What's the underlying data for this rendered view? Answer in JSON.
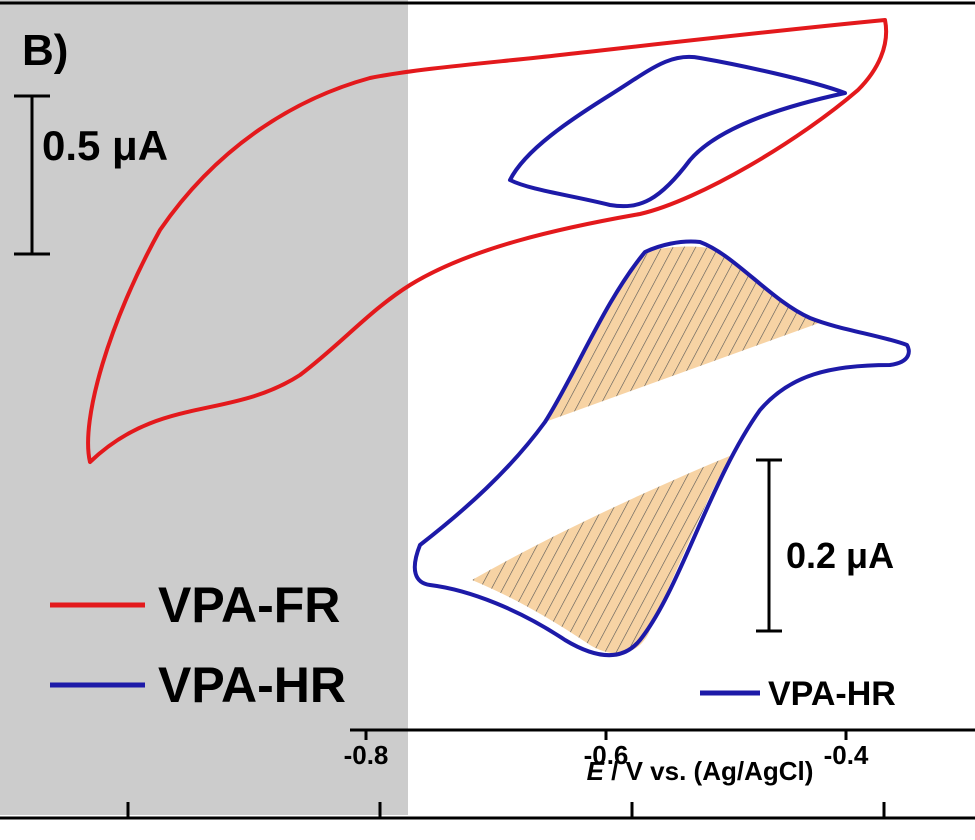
{
  "panel_label": "B)",
  "colors": {
    "shade": "#cccccc",
    "fr": "#e3191c",
    "hr": "#1d1aa8",
    "hatch_fill": "#f7d3a4",
    "axis": "#000000"
  },
  "scale_bars": {
    "large": "0.5 μA",
    "small": "0.2 μA"
  },
  "legend": {
    "entries": [
      {
        "label": "VPA-FR",
        "color": "#e3191c"
      },
      {
        "label": "VPA-HR",
        "color": "#1d1aa8"
      }
    ],
    "inset_entry": {
      "label": "VPA-HR",
      "color": "#1d1aa8"
    }
  },
  "chart_data": {
    "type": "line",
    "title": "",
    "xlabel_italic": "E",
    "xlabel_rest": " / V vs. (Ag/AgCl)",
    "xlim": [
      -0.9,
      -0.34
    ],
    "ylim": [
      0,
      1
    ],
    "x_ticks": [
      -0.8,
      -0.6,
      -0.4
    ],
    "x_tick_labels": [
      "-0.8",
      "-0.6",
      "-0.4"
    ],
    "shaded_region": [
      -0.9,
      -0.76
    ],
    "grid": false,
    "legend_placement": "bottom-left",
    "series": [
      {
        "name": "VPA-FR",
        "color": "#e3191c",
        "closed": true,
        "x": [
          -0.375,
          -0.4,
          -0.45,
          -0.5,
          -0.55,
          -0.6,
          -0.65,
          -0.7,
          -0.75,
          -0.8,
          -0.85,
          -0.875,
          -0.88,
          -0.85,
          -0.8,
          -0.75,
          -0.7,
          -0.65,
          -0.6,
          -0.55,
          -0.5,
          -0.45,
          -0.4,
          -0.375
        ],
        "y": [
          0.985,
          0.835,
          0.76,
          0.74,
          0.735,
          0.715,
          0.695,
          0.67,
          0.635,
          0.57,
          0.49,
          0.45,
          0.5,
          0.79,
          0.87,
          0.915,
          0.93,
          0.94,
          0.95,
          0.96,
          0.965,
          0.975,
          0.982,
          0.985
        ]
      },
      {
        "name": "VPA-HR (upper)",
        "color": "#1d1aa8",
        "closed": true,
        "x": [
          -0.405,
          -0.45,
          -0.5,
          -0.52,
          -0.54,
          -0.56,
          -0.58,
          -0.6,
          -0.63,
          -0.68,
          -0.675,
          -0.64,
          -0.6,
          -0.56,
          -0.53,
          -0.5,
          -0.45,
          -0.405
        ],
        "y": [
          0.89,
          0.93,
          0.955,
          0.96,
          0.955,
          0.94,
          0.915,
          0.895,
          0.86,
          0.79,
          0.78,
          0.76,
          0.745,
          0.745,
          0.78,
          0.85,
          0.875,
          0.89
        ]
      },
      {
        "name": "VPA-HR (lower)",
        "color": "#1d1aa8",
        "closed": true,
        "x": [
          -0.345,
          -0.4,
          -0.45,
          -0.5,
          -0.52,
          -0.54,
          -0.56,
          -0.6,
          -0.65,
          -0.7,
          -0.75,
          -0.745,
          -0.7,
          -0.65,
          -0.62,
          -0.6,
          -0.58,
          -0.55,
          -0.5,
          -0.45,
          -0.4,
          -0.345
        ],
        "y": [
          0.565,
          0.59,
          0.63,
          0.7,
          0.71,
          0.7,
          0.665,
          0.575,
          0.475,
          0.38,
          0.3,
          0.26,
          0.245,
          0.22,
          0.195,
          0.19,
          0.21,
          0.295,
          0.405,
          0.5,
          0.55,
          0.565
        ]
      }
    ]
  }
}
